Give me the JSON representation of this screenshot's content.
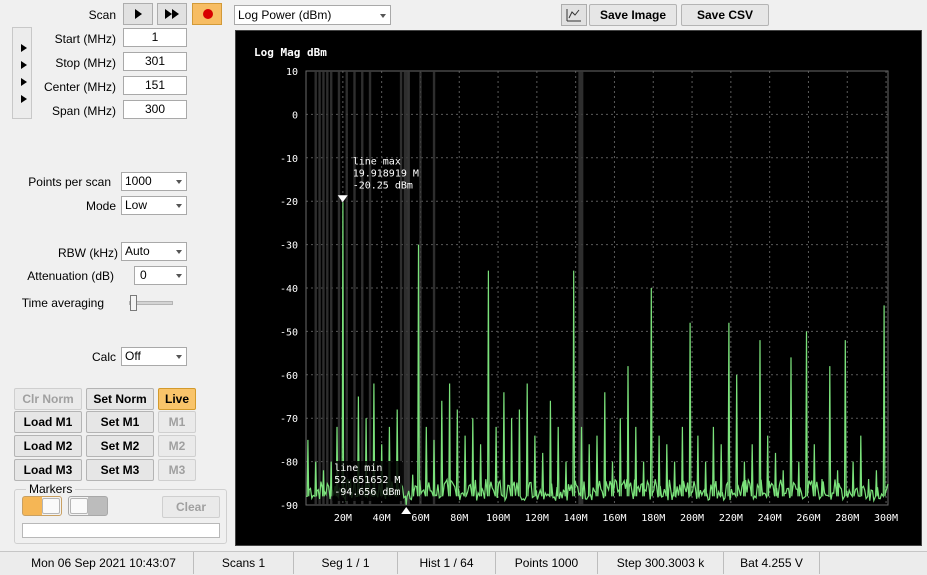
{
  "controls": {
    "scan_label": "Scan",
    "start_label": "Start (MHz)",
    "start_value": "1",
    "stop_label": "Stop (MHz)",
    "stop_value": "301",
    "center_label": "Center (MHz)",
    "center_value": "151",
    "span_label": "Span (MHz)",
    "span_value": "300",
    "points_label": "Points per scan",
    "points_value": "1000",
    "mode_label": "Mode",
    "mode_value": "Low",
    "rbw_label": "RBW (kHz)",
    "rbw_value": "Auto",
    "atten_label": "Attenuation (dB)",
    "atten_value": "0",
    "timeavg_label": "Time averaging",
    "calc_label": "Calc",
    "calc_value": "Off"
  },
  "toolbar": {
    "view_select": "Log Power (dBm)",
    "save_image": "Save Image",
    "save_csv": "Save CSV"
  },
  "memory_buttons": {
    "clr_norm": "Clr Norm",
    "set_norm": "Set Norm",
    "live": "Live",
    "load_m1": "Load M1",
    "set_m1": "Set M1",
    "m1": "M1",
    "load_m2": "Load M2",
    "set_m2": "Set M2",
    "m2": "M2",
    "load_m3": "Load M3",
    "set_m3": "Set M3",
    "m3": "M3"
  },
  "markers": {
    "group_label": "Markers",
    "clear_label": "Clear"
  },
  "status_bar": {
    "datetime": "Mon 06 Sep 2021 10:43:07",
    "scans": "Scans 1",
    "seg": "Seg 1 / 1",
    "hist": "Hist 1 / 64",
    "points": "Points 1000",
    "step": "Step 300.3003 k",
    "battery": "Bat 4.255 V"
  },
  "colors": {
    "trace": "#7be27b",
    "plot_bg": "#000000",
    "live_button": "#f9c46a"
  },
  "chart_data": {
    "type": "line",
    "ylabel": "Log Mag dBm",
    "x_unit": "MHz",
    "xlim": [
      1,
      301
    ],
    "ylim": [
      -90,
      10
    ],
    "y_ticks": [
      10,
      0,
      -10,
      -20,
      -30,
      -40,
      -50,
      -60,
      -70,
      -80,
      -90
    ],
    "x_ticks": [
      20,
      40,
      60,
      80,
      100,
      120,
      140,
      160,
      180,
      200,
      220,
      240,
      260,
      280,
      300
    ],
    "x_tick_labels": [
      "20M",
      "40M",
      "60M",
      "80M",
      "100M",
      "120M",
      "140M",
      "160M",
      "180M",
      "200M",
      "220M",
      "240M",
      "260M",
      "280M",
      "300M"
    ],
    "grid": true,
    "peaks": [
      {
        "x": 2,
        "y": -75
      },
      {
        "x": 6,
        "y": -80
      },
      {
        "x": 10,
        "y": -82
      },
      {
        "x": 14,
        "y": -80
      },
      {
        "x": 17,
        "y": -72
      },
      {
        "x": 20,
        "y": -20.25
      },
      {
        "x": 24,
        "y": -84
      },
      {
        "x": 28,
        "y": -65
      },
      {
        "x": 32,
        "y": -70
      },
      {
        "x": 36,
        "y": -62
      },
      {
        "x": 40,
        "y": -76
      },
      {
        "x": 44,
        "y": -72
      },
      {
        "x": 48,
        "y": -68
      },
      {
        "x": 52.65,
        "y": -94.656
      },
      {
        "x": 56,
        "y": -83
      },
      {
        "x": 59,
        "y": -30
      },
      {
        "x": 63,
        "y": -72
      },
      {
        "x": 67,
        "y": -75
      },
      {
        "x": 71,
        "y": -66
      },
      {
        "x": 75,
        "y": -62
      },
      {
        "x": 79,
        "y": -68
      },
      {
        "x": 83,
        "y": -74
      },
      {
        "x": 87,
        "y": -70
      },
      {
        "x": 91,
        "y": -76
      },
      {
        "x": 95,
        "y": -36
      },
      {
        "x": 99,
        "y": -72
      },
      {
        "x": 103,
        "y": -64
      },
      {
        "x": 107,
        "y": -70
      },
      {
        "x": 111,
        "y": -68
      },
      {
        "x": 115,
        "y": -62
      },
      {
        "x": 119,
        "y": -74
      },
      {
        "x": 123,
        "y": -78
      },
      {
        "x": 127,
        "y": -66
      },
      {
        "x": 131,
        "y": -72
      },
      {
        "x": 135,
        "y": -80
      },
      {
        "x": 139,
        "y": -36
      },
      {
        "x": 143,
        "y": -72
      },
      {
        "x": 147,
        "y": -76
      },
      {
        "x": 151,
        "y": -74
      },
      {
        "x": 155,
        "y": -64
      },
      {
        "x": 159,
        "y": -80
      },
      {
        "x": 163,
        "y": -70
      },
      {
        "x": 167,
        "y": -58
      },
      {
        "x": 171,
        "y": -72
      },
      {
        "x": 175,
        "y": -80
      },
      {
        "x": 179,
        "y": -40
      },
      {
        "x": 183,
        "y": -74
      },
      {
        "x": 187,
        "y": -76
      },
      {
        "x": 191,
        "y": -80
      },
      {
        "x": 195,
        "y": -72
      },
      {
        "x": 199,
        "y": -48
      },
      {
        "x": 203,
        "y": -74
      },
      {
        "x": 207,
        "y": -80
      },
      {
        "x": 211,
        "y": -72
      },
      {
        "x": 215,
        "y": -76
      },
      {
        "x": 219,
        "y": -48
      },
      {
        "x": 223,
        "y": -60
      },
      {
        "x": 227,
        "y": -80
      },
      {
        "x": 231,
        "y": -76
      },
      {
        "x": 235,
        "y": -52
      },
      {
        "x": 239,
        "y": -74
      },
      {
        "x": 243,
        "y": -78
      },
      {
        "x": 247,
        "y": -82
      },
      {
        "x": 251,
        "y": -56
      },
      {
        "x": 255,
        "y": -80
      },
      {
        "x": 259,
        "y": -50
      },
      {
        "x": 263,
        "y": -76
      },
      {
        "x": 267,
        "y": -84
      },
      {
        "x": 271,
        "y": -58
      },
      {
        "x": 275,
        "y": -82
      },
      {
        "x": 279,
        "y": -52
      },
      {
        "x": 283,
        "y": -80
      },
      {
        "x": 287,
        "y": -74
      },
      {
        "x": 291,
        "y": -84
      },
      {
        "x": 295,
        "y": -82
      },
      {
        "x": 299,
        "y": -44
      }
    ],
    "noise_floor": -88,
    "annotations": [
      {
        "x": 19.918919,
        "y": -20.25,
        "title": "line max",
        "freq": "19.918919 M",
        "level": "-20.25 dBm"
      },
      {
        "x": 52.651652,
        "y": -94.656,
        "title": "line min",
        "freq": "52.651652 M",
        "level": "-94.656 dBm"
      }
    ]
  }
}
